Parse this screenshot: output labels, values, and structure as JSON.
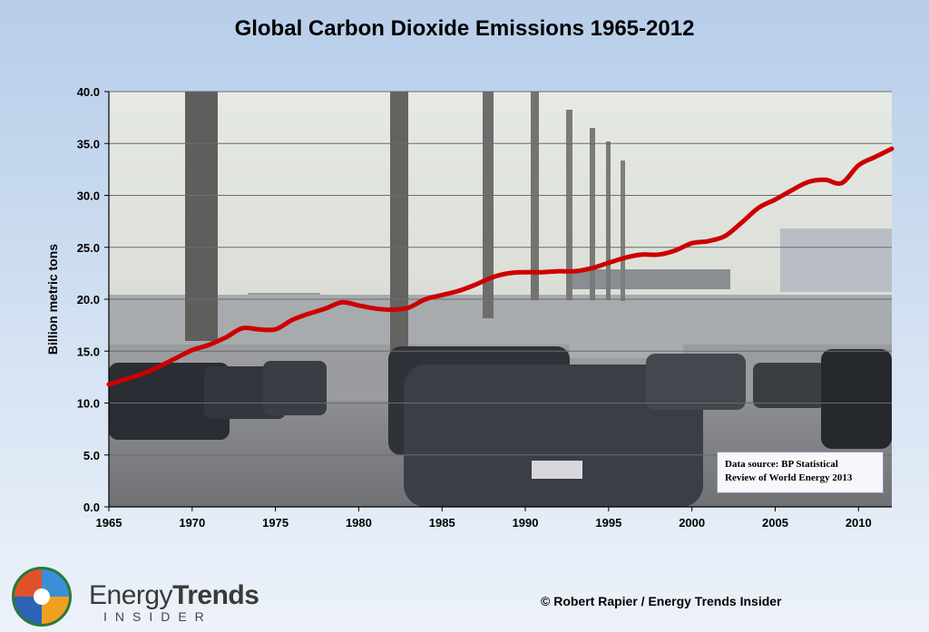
{
  "chart_data": {
    "type": "line",
    "title": "Global Carbon Dioxide Emissions 1965-2012",
    "xlabel": "",
    "ylabel": "Billion metric tons",
    "xlim": [
      1965,
      2012
    ],
    "ylim": [
      0,
      40
    ],
    "x_ticks": [
      "1965",
      "1970",
      "1975",
      "1980",
      "1985",
      "1990",
      "1995",
      "2000",
      "2005",
      "2010"
    ],
    "y_ticks": [
      "0.0",
      "5.0",
      "10.0",
      "15.0",
      "20.0",
      "25.0",
      "30.0",
      "35.0",
      "40.0"
    ],
    "grid": true,
    "series": [
      {
        "color": "#cc0000",
        "x": [
          1965,
          1966,
          1967,
          1968,
          1969,
          1970,
          1971,
          1972,
          1973,
          1974,
          1975,
          1976,
          1977,
          1978,
          1979,
          1980,
          1981,
          1982,
          1983,
          1984,
          1985,
          1986,
          1987,
          1988,
          1989,
          1990,
          1991,
          1992,
          1993,
          1994,
          1995,
          1996,
          1997,
          1998,
          1999,
          2000,
          2001,
          2002,
          2003,
          2004,
          2005,
          2006,
          2007,
          2008,
          2009,
          2010,
          2011,
          2012
        ],
        "y": [
          11.8,
          12.3,
          12.8,
          13.5,
          14.3,
          15.1,
          15.6,
          16.3,
          17.2,
          17.1,
          17.1,
          18.0,
          18.6,
          19.1,
          19.7,
          19.4,
          19.1,
          19.0,
          19.2,
          20.0,
          20.4,
          20.8,
          21.4,
          22.1,
          22.5,
          22.6,
          22.6,
          22.7,
          22.7,
          23.0,
          23.5,
          24.0,
          24.3,
          24.3,
          24.7,
          25.4,
          25.6,
          26.1,
          27.4,
          28.8,
          29.6,
          30.5,
          31.3,
          31.5,
          31.2,
          32.9,
          33.7,
          34.5
        ]
      }
    ],
    "annotation": [
      "Data source: BP Statistical",
      "Review of World Energy 2013"
    ]
  },
  "branding": {
    "name_light": "Energy",
    "name_bold": "Trends",
    "subtitle": "INSIDER"
  },
  "copyright": "© Robert Rapier / Energy Trends Insider"
}
